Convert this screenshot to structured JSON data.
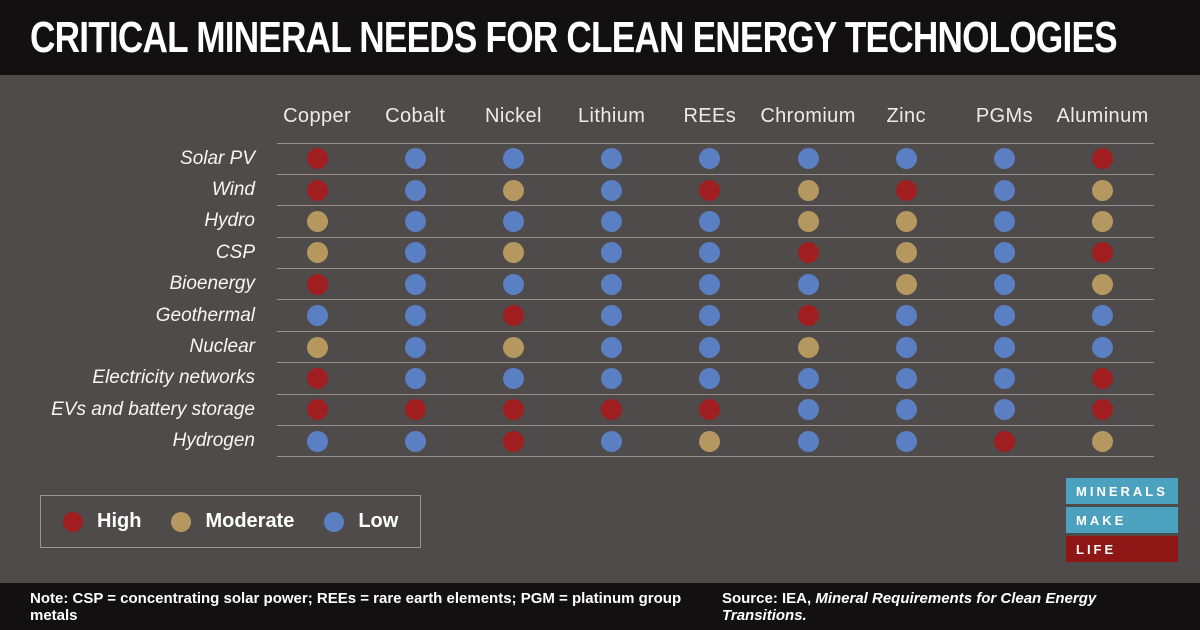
{
  "title": "CRITICAL MINERAL NEEDS FOR CLEAN ENERGY TECHNOLOGIES",
  "colors": {
    "background": "#504b4b",
    "bar_black": "#121011",
    "high": "#a01d20",
    "moderate": "#b5985f",
    "low": "#5b7fc3",
    "grid_line": "#b2aba8",
    "logo_teal": "#4ca1bf",
    "logo_red": "#8e1614"
  },
  "chart_data": {
    "type": "heatmap",
    "title": "CRITICAL MINERAL NEEDS FOR CLEAN ENERGY TECHNOLOGIES",
    "columns": [
      "Copper",
      "Cobalt",
      "Nickel",
      "Lithium",
      "REEs",
      "Chromium",
      "Zinc",
      "PGMs",
      "Aluminum"
    ],
    "rows": [
      "Solar PV",
      "Wind",
      "Hydro",
      "CSP",
      "Bioenergy",
      "Geothermal",
      "Nuclear",
      "Electricity networks",
      "EVs and battery storage",
      "Hydrogen"
    ],
    "values": [
      [
        "High",
        "Low",
        "Low",
        "Low",
        "Low",
        "Low",
        "Low",
        "Low",
        "High"
      ],
      [
        "High",
        "Low",
        "Moderate",
        "Low",
        "High",
        "Moderate",
        "High",
        "Low",
        "Moderate"
      ],
      [
        "Moderate",
        "Low",
        "Low",
        "Low",
        "Low",
        "Moderate",
        "Moderate",
        "Low",
        "Moderate"
      ],
      [
        "Moderate",
        "Low",
        "Moderate",
        "Low",
        "Low",
        "High",
        "Moderate",
        "Low",
        "High"
      ],
      [
        "High",
        "Low",
        "Low",
        "Low",
        "Low",
        "Low",
        "Moderate",
        "Low",
        "Moderate"
      ],
      [
        "Low",
        "Low",
        "High",
        "Low",
        "Low",
        "High",
        "Low",
        "Low",
        "Low"
      ],
      [
        "Moderate",
        "Low",
        "Moderate",
        "Low",
        "Low",
        "Moderate",
        "Low",
        "Low",
        "Low"
      ],
      [
        "High",
        "Low",
        "Low",
        "Low",
        "Low",
        "Low",
        "Low",
        "Low",
        "High"
      ],
      [
        "High",
        "High",
        "High",
        "High",
        "High",
        "Low",
        "Low",
        "Low",
        "High"
      ],
      [
        "Low",
        "Low",
        "High",
        "Low",
        "Moderate",
        "Low",
        "Low",
        "High",
        "Moderate"
      ]
    ],
    "legend": [
      {
        "label": "High",
        "level": "high",
        "color": "#a01d20"
      },
      {
        "label": "Moderate",
        "level": "moderate",
        "color": "#b5985f"
      },
      {
        "label": "Low",
        "level": "low",
        "color": "#5b7fc3"
      }
    ],
    "legend_position": "bottom-left",
    "grid": true
  },
  "logo": {
    "bars": [
      {
        "label": "MINERALS",
        "color": "#4ca1bf"
      },
      {
        "label": "MAKE",
        "color": "#4ca1bf"
      },
      {
        "label": "LIFE",
        "color": "#8e1614"
      }
    ]
  },
  "footer": {
    "note": "Note: CSP = concentrating solar power; REEs = rare earth elements; PGM = platinum group metals",
    "source_prefix": "Source: IEA, ",
    "source_title": "Mineral Requirements for Clean Energy Transitions."
  }
}
